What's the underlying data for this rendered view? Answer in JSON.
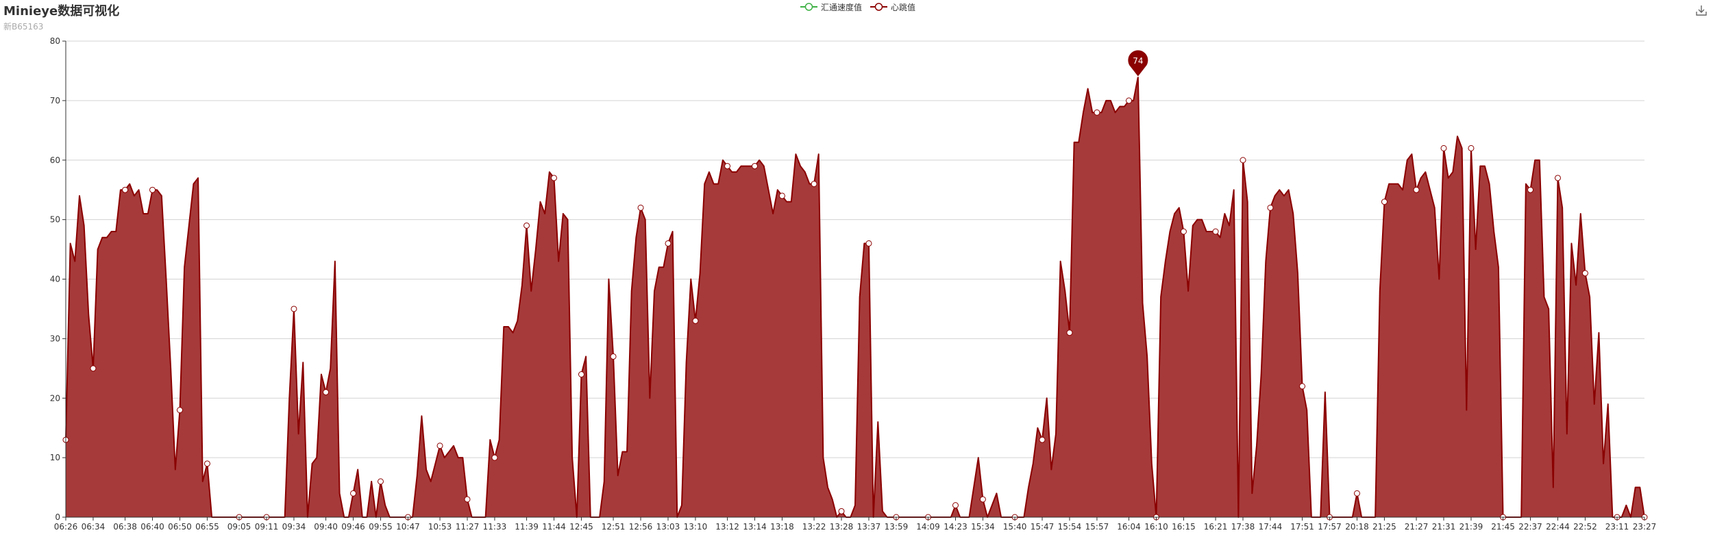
{
  "icons": {
    "toolbox": "download-icon"
  },
  "colors": {
    "heart": "#8b0000",
    "heart_fill": "#a63a3a",
    "speed": "#3cb043",
    "grid": "#d3d3d3",
    "axis": "#333333"
  },
  "chart_data": {
    "type": "area",
    "title": "Minieye数据可视化",
    "subtitle": "新B65163",
    "legend": [
      "汇通速度值",
      "心跳值"
    ],
    "legend_position": "top-center",
    "grid": true,
    "ylim": [
      0,
      80
    ],
    "y_ticks": [
      0,
      10,
      20,
      30,
      40,
      50,
      60,
      70,
      80
    ],
    "x_tick_labels": [
      "06:26",
      "06:34",
      "06:38",
      "06:40",
      "06:50",
      "06:55",
      "09:05",
      "09:11",
      "09:34",
      "09:40",
      "09:46",
      "09:55",
      "10:47",
      "10:53",
      "11:27",
      "11:33",
      "11:39",
      "11:44",
      "12:45",
      "12:51",
      "12:56",
      "13:03",
      "13:10",
      "13:12",
      "13:14",
      "13:18",
      "13:22",
      "13:28",
      "13:37",
      "13:59",
      "14:09",
      "14:23",
      "15:34",
      "15:40",
      "15:47",
      "15:54",
      "15:57",
      "16:04",
      "16:10",
      "16:15",
      "16:21",
      "17:38",
      "17:44",
      "17:51",
      "17:57",
      "20:18",
      "21:25",
      "21:27",
      "21:31",
      "21:39",
      "21:45",
      "22:37",
      "22:44",
      "22:52",
      "23:11",
      "23:27"
    ],
    "series": [
      {
        "name": "汇通速度值",
        "values": []
      },
      {
        "name": "心跳值",
        "values": [
          13,
          46,
          43,
          54,
          49,
          34,
          25,
          45,
          47,
          47,
          48,
          48,
          55,
          55,
          56,
          54,
          55,
          51,
          51,
          55,
          55,
          54,
          40,
          25,
          8,
          18,
          42,
          49,
          56,
          57,
          6,
          9,
          0,
          0,
          0,
          0,
          0,
          0,
          0,
          0,
          0,
          0,
          0,
          0,
          0,
          0,
          0,
          0,
          0,
          20,
          35,
          14,
          26,
          0,
          9,
          10,
          24,
          21,
          25,
          43,
          4,
          0,
          0,
          4,
          8,
          0,
          0,
          6,
          0,
          6,
          2,
          0,
          0,
          0,
          0,
          0,
          0,
          7,
          17,
          8,
          6,
          9,
          12,
          10,
          11,
          12,
          10,
          10,
          3,
          0,
          0,
          0,
          0,
          13,
          10,
          13,
          32,
          32,
          31,
          33,
          39,
          49,
          38,
          45,
          53,
          51,
          58,
          57,
          43,
          51,
          50,
          10,
          0,
          24,
          27,
          0,
          0,
          0,
          6,
          40,
          27,
          7,
          11,
          11,
          38,
          47,
          52,
          50,
          20,
          38,
          42,
          42,
          46,
          48,
          0,
          2,
          26,
          40,
          33,
          41,
          56,
          58,
          56,
          56,
          60,
          59,
          58,
          58,
          59,
          59,
          59,
          59,
          60,
          59,
          55,
          51,
          55,
          54,
          53,
          53,
          61,
          59,
          58,
          56,
          56,
          61,
          10,
          5,
          3,
          0,
          1,
          0,
          0,
          2,
          37,
          46,
          46,
          0,
          16,
          1,
          0,
          0,
          0,
          0,
          0,
          0,
          0,
          0,
          0,
          0,
          0,
          0,
          0,
          0,
          0,
          2,
          0,
          0,
          0,
          5,
          10,
          3,
          0,
          2,
          4,
          0,
          0,
          0,
          0,
          0,
          0,
          5,
          9,
          15,
          13,
          20,
          8,
          14,
          43,
          38,
          31,
          63,
          63,
          68,
          72,
          68,
          68,
          68,
          70,
          70,
          68,
          69,
          69,
          70,
          70,
          74,
          36,
          27,
          9,
          0,
          37,
          43,
          48,
          51,
          52,
          48,
          38,
          49,
          50,
          50,
          48,
          48,
          48,
          47,
          51,
          49,
          55,
          0,
          60,
          53,
          4,
          12,
          24,
          43,
          52,
          54,
          55,
          54,
          55,
          51,
          41,
          22,
          18,
          0,
          0,
          0,
          21,
          0,
          0,
          0,
          0,
          0,
          0,
          4,
          0,
          0,
          0,
          0,
          38,
          53,
          56,
          56,
          56,
          55,
          60,
          61,
          55,
          57,
          58,
          55,
          52,
          40,
          62,
          57,
          58,
          64,
          62,
          18,
          62,
          45,
          59,
          59,
          56,
          48,
          42,
          0,
          0,
          0,
          0,
          0,
          56,
          55,
          60,
          60,
          37,
          35,
          5,
          57,
          52,
          14,
          46,
          39,
          51,
          41,
          37,
          19,
          31,
          9,
          19,
          0,
          0,
          0,
          2,
          0,
          5,
          5,
          0
        ]
      }
    ],
    "mark_point": {
      "label": "74"
    }
  }
}
